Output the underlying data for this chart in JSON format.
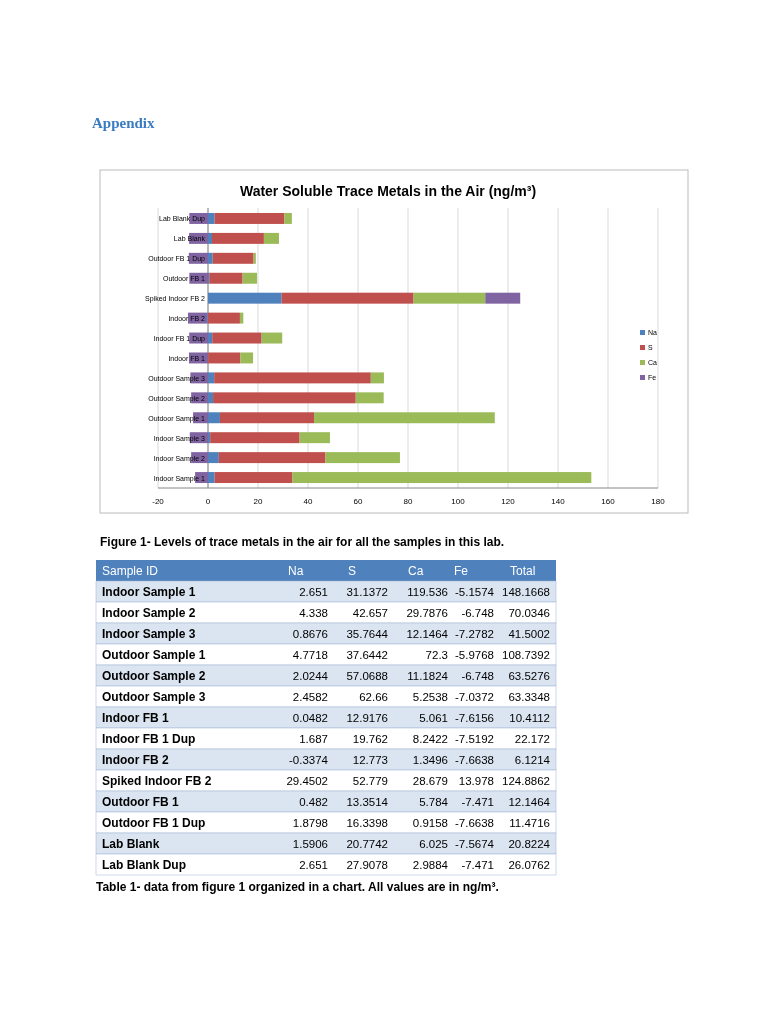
{
  "chart_data": [
    {
      "type": "bar",
      "orientation": "horizontal",
      "stacked": true,
      "title": "Water Soluble Trace Metals in the Air (ng/m³)",
      "annotations": [
        "Appendix",
        "Figure 1- Levels of trace metals in the air for all the samples in this lab."
      ],
      "categories": [
        "Lab Blank Dup",
        "Lab Blank",
        "Outdoor FB 1 Dup",
        "Outdoor FB 1",
        "Spiked Indoor FB 2",
        "Indoor FB 2",
        "Indoor FB 1 Dup",
        "Indoor FB 1",
        "Outdoor Sample 3",
        "Outdoor Sample 2",
        "Outdoor Sample 1",
        "Indoor Sample 3",
        "Indoor Sample 2",
        "Indoor Sample 1"
      ],
      "series": [
        {
          "name": "Na",
          "color": "#4f81bd",
          "values": [
            2.651,
            1.5906,
            1.8798,
            0.482,
            29.4502,
            -0.3374,
            1.687,
            0.0482,
            2.4582,
            2.0244,
            4.7718,
            0.8676,
            4.338,
            2.651
          ]
        },
        {
          "name": "S",
          "color": "#c0504d",
          "values": [
            27.9078,
            20.7742,
            16.3398,
            13.3514,
            52.779,
            12.773,
            19.762,
            12.9176,
            62.66,
            57.0688,
            37.6442,
            35.7644,
            42.657,
            31.1372
          ]
        },
        {
          "name": "Ca",
          "color": "#9bbb59",
          "values": [
            2.9884,
            6.025,
            0.9158,
            5.784,
            28.679,
            1.3496,
            8.2422,
            5.061,
            5.2538,
            11.1824,
            72.3,
            12.1464,
            29.7876,
            119.536
          ]
        },
        {
          "name": "Fe",
          "color": "#8064a2",
          "values": [
            -7.471,
            -7.5674,
            -7.6638,
            -7.471,
            13.978,
            -7.6638,
            -7.5192,
            -7.6156,
            -7.0372,
            -6.748,
            -5.9768,
            -7.2782,
            -6.748,
            -5.1574
          ]
        }
      ],
      "xlim": [
        -20,
        180
      ],
      "xticks": [
        -20,
        0,
        20,
        40,
        60,
        80,
        100,
        120,
        140,
        160,
        180
      ],
      "grid": "x",
      "legend": "right"
    },
    {
      "type": "heatmap",
      "ylabel": "Sample ID",
      "annotations": [
        "Table 1- data from figure 1 organized in a chart. All values are in ng/m³."
      ],
      "categories": [
        "Na",
        "S",
        "Ca",
        "Fe",
        "Total"
      ],
      "data_labels": true,
      "y_categories": [
        "Indoor Sample 1",
        "Indoor Sample 2",
        "Indoor Sample 3",
        "Outdoor Sample 1",
        "Outdoor Sample 2",
        "Outdoor Sample 3",
        "Indoor FB 1",
        "Indoor FB 1 Dup",
        "Indoor FB 2",
        "Spiked Indoor FB 2",
        "Outdoor FB 1",
        "Outdoor FB 1 Dup",
        "Lab Blank",
        "Lab Blank Dup"
      ],
      "cells": [
        [
          2.651,
          31.1372,
          119.536,
          -5.1574,
          148.1668
        ],
        [
          4.338,
          42.657,
          29.7876,
          -6.748,
          70.0346
        ],
        [
          0.8676,
          35.7644,
          12.1464,
          -7.2782,
          41.5002
        ],
        [
          4.7718,
          37.6442,
          72.3,
          -5.9768,
          108.7392
        ],
        [
          2.0244,
          57.0688,
          11.1824,
          -6.748,
          63.5276
        ],
        [
          2.4582,
          62.66,
          5.2538,
          -7.0372,
          63.3348
        ],
        [
          0.0482,
          12.9176,
          5.061,
          -7.6156,
          10.4112
        ],
        [
          1.687,
          19.762,
          8.2422,
          -7.5192,
          22.172
        ],
        [
          -0.3374,
          12.773,
          1.3496,
          -7.6638,
          6.1214
        ],
        [
          29.4502,
          52.779,
          28.679,
          13.978,
          124.8862
        ],
        [
          0.482,
          13.3514,
          5.784,
          -7.471,
          12.1464
        ],
        [
          1.8798,
          16.3398,
          0.9158,
          -7.6638,
          11.4716
        ],
        [
          1.5906,
          20.7742,
          6.025,
          -7.5674,
          20.8224
        ],
        [
          2.651,
          27.9078,
          2.9884,
          -7.471,
          26.0762
        ]
      ]
    }
  ]
}
